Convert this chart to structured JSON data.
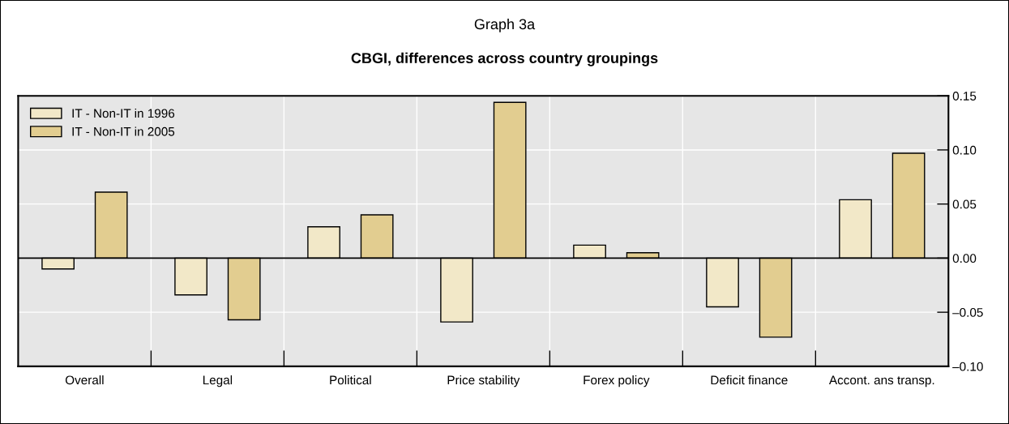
{
  "chart_data": {
    "type": "bar",
    "title": "Graph 3a",
    "subtitle": "CBGI, differences across country groupings",
    "categories": [
      "Overall",
      "Legal",
      "Political",
      "Price stability",
      "Forex policy",
      "Deficit finance",
      "Accont. ans transp."
    ],
    "series": [
      {
        "name": "IT - Non-IT in 1996",
        "color": "#f2e8c8",
        "values": [
          -0.01,
          -0.034,
          0.029,
          -0.059,
          0.012,
          -0.045,
          0.054
        ]
      },
      {
        "name": "IT - Non-IT in 2005",
        "color": "#e2cd90",
        "values": [
          0.061,
          -0.057,
          0.04,
          0.144,
          0.005,
          -0.073,
          0.097
        ]
      }
    ],
    "ylim": [
      -0.1,
      0.15
    ],
    "yticks": [
      {
        "value": -0.1,
        "label": "–0.10"
      },
      {
        "value": -0.05,
        "label": "–0.05"
      },
      {
        "value": 0.0,
        "label": "0.00"
      },
      {
        "value": 0.05,
        "label": "0.05"
      },
      {
        "value": 0.1,
        "label": "0.10"
      },
      {
        "value": 0.15,
        "label": "0.15"
      }
    ],
    "grid": true,
    "legend": "top left"
  }
}
